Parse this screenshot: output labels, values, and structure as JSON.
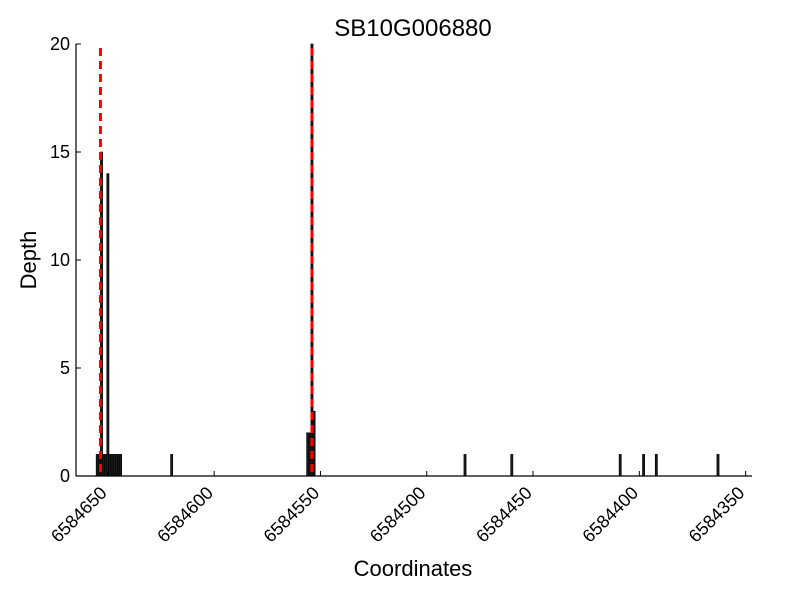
{
  "chart_data": {
    "type": "bar",
    "title": "SB10G006880",
    "xlabel": "Coordinates",
    "ylabel": "Depth",
    "x_reversed": true,
    "xlim": [
      6584665,
      6584347
    ],
    "ylim": [
      0,
      20
    ],
    "xticks": [
      6584650,
      6584600,
      6584550,
      6584500,
      6584450,
      6584400,
      6584350
    ],
    "yticks": [
      0,
      5,
      10,
      15,
      20
    ],
    "bar_width": 1,
    "colors": {
      "bar_fill": "#1a1a1a",
      "bar_edge": "#000000",
      "marker_line": "#ff0000",
      "axis": "#000000"
    },
    "bars": [
      {
        "x": 6584655,
        "y": 1
      },
      {
        "x": 6584654,
        "y": 1
      },
      {
        "x": 6584653,
        "y": 15
      },
      {
        "x": 6584652,
        "y": 1
      },
      {
        "x": 6584651,
        "y": 1
      },
      {
        "x": 6584650,
        "y": 14
      },
      {
        "x": 6584649,
        "y": 1
      },
      {
        "x": 6584648,
        "y": 1
      },
      {
        "x": 6584647,
        "y": 1
      },
      {
        "x": 6584646,
        "y": 1
      },
      {
        "x": 6584645,
        "y": 1
      },
      {
        "x": 6584644,
        "y": 1
      },
      {
        "x": 6584620,
        "y": 1
      },
      {
        "x": 6584556,
        "y": 2
      },
      {
        "x": 6584555,
        "y": 2
      },
      {
        "x": 6584554,
        "y": 20
      },
      {
        "x": 6584553,
        "y": 3
      },
      {
        "x": 6584482,
        "y": 1
      },
      {
        "x": 6584460,
        "y": 1
      },
      {
        "x": 6584409,
        "y": 1
      },
      {
        "x": 6584398,
        "y": 1
      },
      {
        "x": 6584392,
        "y": 1
      },
      {
        "x": 6584363,
        "y": 1
      }
    ],
    "marker_lines": [
      {
        "x": 6584653.5,
        "style": "dashed"
      },
      {
        "x": 6584554,
        "style": "dashed"
      }
    ]
  }
}
